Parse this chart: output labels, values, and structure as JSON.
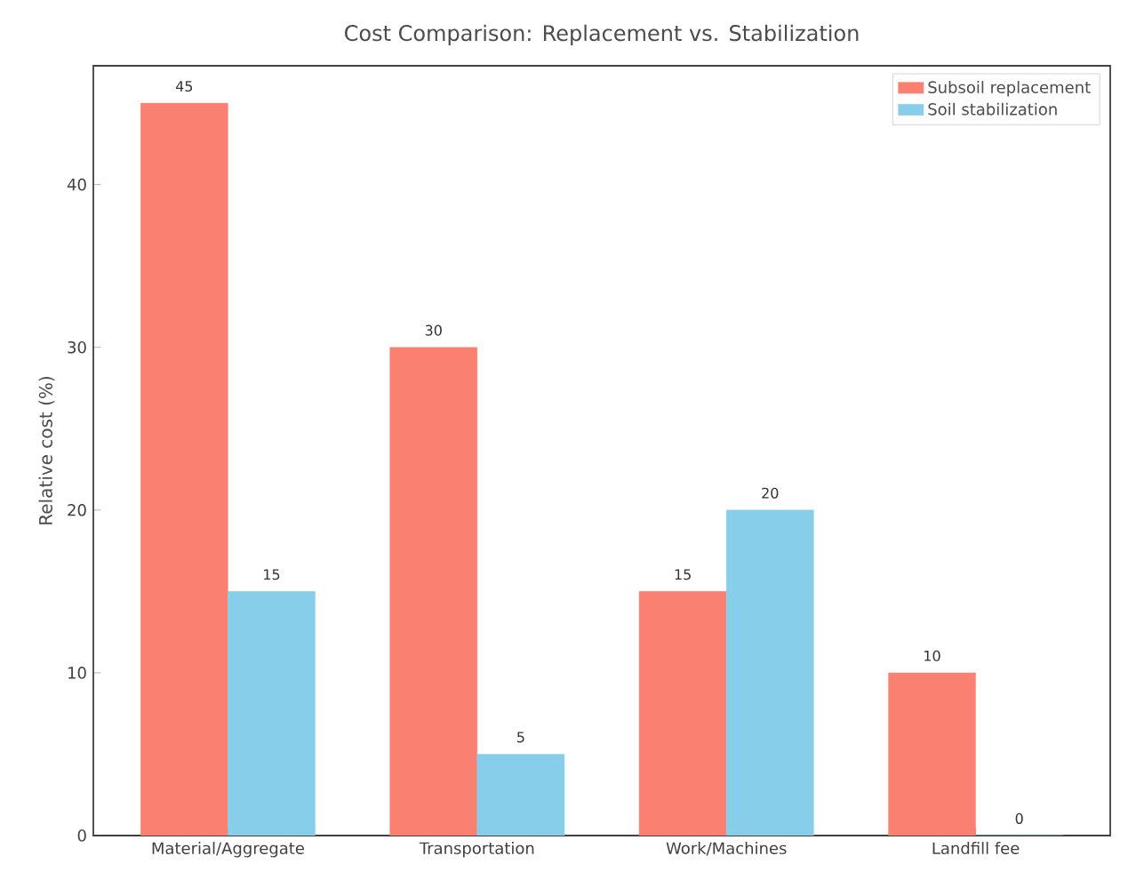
{
  "chart_data": {
    "type": "bar",
    "title": "Cost Comparison: Replacement vs. Stabilization",
    "ylabel": "Relative cost (%)",
    "categories": [
      "Material/Aggregate",
      "Transportation",
      "Work/Machines",
      "Landfill fee"
    ],
    "series": [
      {
        "name": "Subsoil replacement",
        "color": "#fa8072",
        "values": [
          45,
          30,
          15,
          10
        ]
      },
      {
        "name": "Soil stabilization",
        "color": "#87ceeb",
        "values": [
          15,
          5,
          20,
          0
        ]
      }
    ],
    "ylim": [
      0,
      47.3
    ],
    "yticks": [
      0,
      10,
      20,
      30,
      40
    ],
    "grid": false,
    "legend": "top right",
    "data_labels": true
  }
}
